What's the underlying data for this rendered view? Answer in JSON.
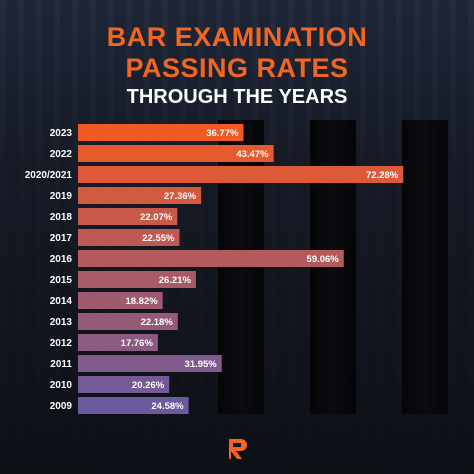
{
  "header": {
    "title_line1": "BAR EXAMINATION",
    "title_line2": "PASSING RATES",
    "subtitle": "THROUGH THE YEARS"
  },
  "logo": {
    "icon": "rappler-logo-icon"
  },
  "colors": {
    "title": "#f26522",
    "bar_top": "#f15a24",
    "bar_bottom": "#6b5a9e"
  },
  "chart_data": {
    "type": "bar",
    "orientation": "horizontal",
    "categories": [
      "2023",
      "2022",
      "2020/2021",
      "2019",
      "2018",
      "2017",
      "2016",
      "2015",
      "2014",
      "2013",
      "2012",
      "2011",
      "2010",
      "2009"
    ],
    "values": [
      36.77,
      43.47,
      72.28,
      27.36,
      22.07,
      22.55,
      59.06,
      26.21,
      18.82,
      22.18,
      17.76,
      31.95,
      20.26,
      24.58
    ],
    "value_labels": [
      "36.77%",
      "43.47%",
      "72.28%",
      "27.36%",
      "22.07%",
      "22.55%",
      "59.06%",
      "26.21%",
      "18.82%",
      "22.18%",
      "17.76%",
      "31.95%",
      "20.26%",
      "24.58%"
    ],
    "title": "BAR EXAMINATION PASSING RATES",
    "subtitle": "THROUGH THE YEARS",
    "xlabel": "",
    "ylabel": "",
    "xlim": [
      0,
      80
    ],
    "grid": false,
    "legend": "none"
  }
}
